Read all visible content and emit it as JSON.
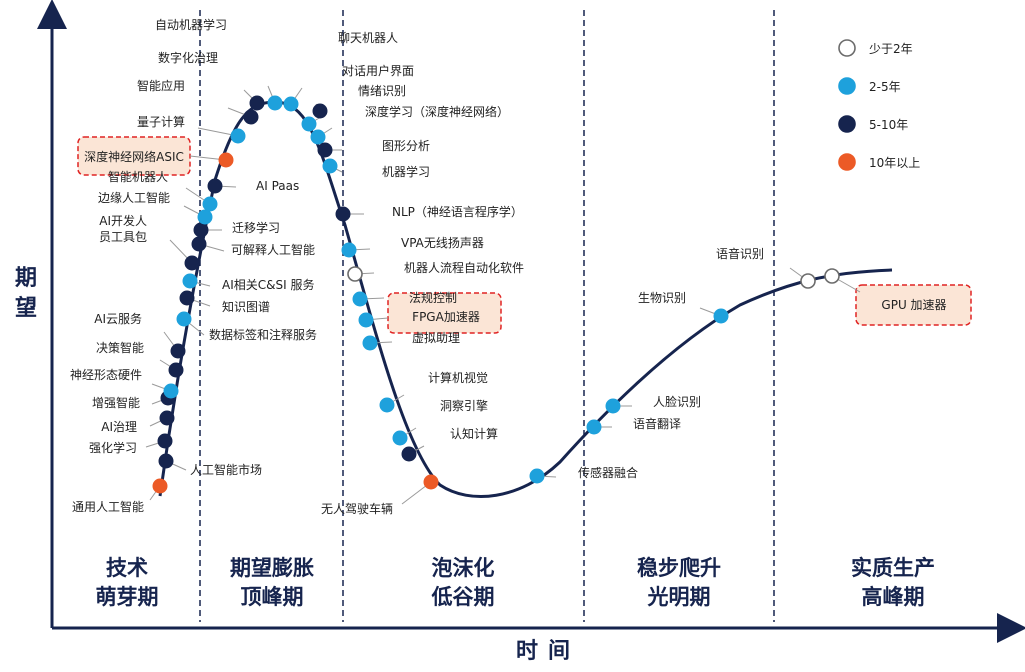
{
  "axes": {
    "y_label": "期望",
    "x_label": "时间"
  },
  "phases": [
    {
      "line1": "技术",
      "line2": "萌芽期"
    },
    {
      "line1": "期望膨胀",
      "line2": "顶峰期"
    },
    {
      "line1": "泡沫化",
      "line2": "低谷期"
    },
    {
      "line1": "稳步爬升",
      "line2": "光明期"
    },
    {
      "line1": "实质生产",
      "line2": "高峰期"
    }
  ],
  "legend": [
    {
      "label": "少于2年",
      "color": "#ffffff",
      "stroke": "#6b6b6b"
    },
    {
      "label": "2-5年",
      "color": "#1ea1dc",
      "stroke": "#1ea1dc"
    },
    {
      "label": "5-10年",
      "color": "#16244e",
      "stroke": "#16244e"
    },
    {
      "label": "10年以上",
      "color": "#ec5a26",
      "stroke": "#ec5a26"
    }
  ],
  "technologies": [
    {
      "label": "通用人工智能",
      "category": "10年以上"
    },
    {
      "label": "人工智能市场",
      "category": "5-10年"
    },
    {
      "label": "强化学习",
      "category": "5-10年"
    },
    {
      "label": "AI治理",
      "category": "5-10年"
    },
    {
      "label": "增强智能",
      "category": "5-10年"
    },
    {
      "label": "神经形态硬件",
      "category": "2-5年"
    },
    {
      "label": "决策智能",
      "category": "5-10年"
    },
    {
      "label": "AI云服务",
      "category": "5-10年"
    },
    {
      "label": "数据标签和注释服务",
      "category": "2-5年"
    },
    {
      "label": "知识图谱",
      "category": "5-10年"
    },
    {
      "label": "AI相关C&SI 服务",
      "category": "2-5年"
    },
    {
      "label": "AI开发人员工具包",
      "label_lines": [
        "AI开发人",
        "员工具包"
      ],
      "category": "5-10年"
    },
    {
      "label": "可解释人工智能",
      "category": "5-10年"
    },
    {
      "label": "迁移学习",
      "category": "5-10年"
    },
    {
      "label": "边缘人工智能",
      "category": "2-5年"
    },
    {
      "label": "智能机器人",
      "category": "2-5年"
    },
    {
      "label": "AI Paas",
      "category": "5-10年"
    },
    {
      "label": "深度神经网络ASIC",
      "category": "10年以上"
    },
    {
      "label": "量子计算",
      "category": "2-5年"
    },
    {
      "label": "智能应用",
      "category": "5-10年"
    },
    {
      "label": "数字化治理",
      "category": "5-10年"
    },
    {
      "label": "自动机器学习",
      "category": "2-5年"
    },
    {
      "label": "聊天机器人",
      "category": "2-5年"
    },
    {
      "label": "对话用户界面",
      "category": "5-10年"
    },
    {
      "label": "情绪识别",
      "category": "2-5年"
    },
    {
      "label": "深度学习（深度神经网络）",
      "category": "2-5年"
    },
    {
      "label": "图形分析",
      "category": "5-10年"
    },
    {
      "label": "机器学习",
      "category": "2-5年"
    },
    {
      "label": "NLP（神经语言程序学）",
      "category": "5-10年"
    },
    {
      "label": "VPA无线扬声器",
      "category": "2-5年"
    },
    {
      "label": "机器人流程自动化软件",
      "category": "少于2年"
    },
    {
      "label": "法规控制",
      "category": "2-5年"
    },
    {
      "label": "FPGA加速器",
      "category": "2-5年"
    },
    {
      "label": "虚拟助理",
      "category": "2-5年"
    },
    {
      "label": "计算机视觉",
      "category": "2-5年"
    },
    {
      "label": "洞察引擎",
      "category": "2-5年"
    },
    {
      "label": "认知计算",
      "category": "5-10年"
    },
    {
      "label": "无人驾驶车辆",
      "category": "10年以上"
    },
    {
      "label": "传感器融合",
      "category": "2-5年"
    },
    {
      "label": "语音翻译",
      "category": "2-5年"
    },
    {
      "label": "人脸识别",
      "category": "2-5年"
    },
    {
      "label": "生物识别",
      "category": "2-5年"
    },
    {
      "label": "语音识别",
      "category": "少于2年"
    },
    {
      "label": "GPU 加速器",
      "category": "少于2年"
    }
  ]
}
